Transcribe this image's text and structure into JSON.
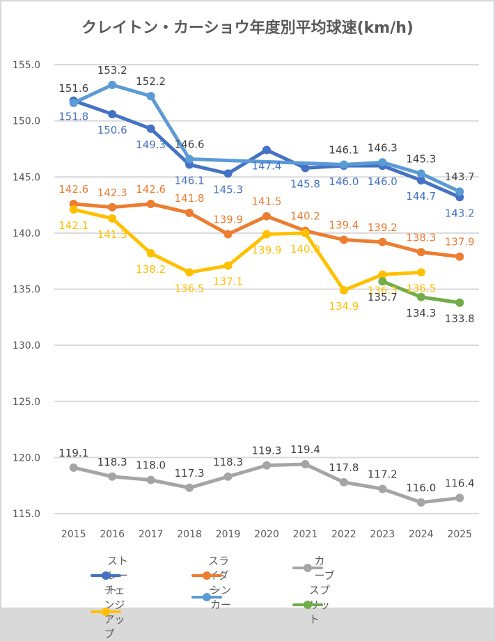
{
  "chart_data": {
    "type": "line",
    "title": "クレイトン・カーショウ年度別平均球速(km/h)",
    "xlabel": "",
    "ylabel": "",
    "ylim": [
      115.0,
      155.0
    ],
    "yticks": [
      "155.0",
      "150.0",
      "145.0",
      "140.0",
      "135.0",
      "130.0",
      "125.0",
      "120.0",
      "115.0"
    ],
    "grid": true,
    "legend_position": "bottom",
    "categories": [
      "2015",
      "2016",
      "2017",
      "2018",
      "2019",
      "2020",
      "2021",
      "2022",
      "2023",
      "2024",
      "2025"
    ],
    "series": [
      {
        "name": "ストレート",
        "color": "#4472c4",
        "label_color": "#4472c4",
        "label_pos": "below",
        "values": [
          151.8,
          150.6,
          149.3,
          146.1,
          145.3,
          147.4,
          145.8,
          146.0,
          146.0,
          144.7,
          143.2
        ]
      },
      {
        "name": "スライダー",
        "color": "#ed7d31",
        "label_color": "#ed7d31",
        "label_pos": "above",
        "values": [
          142.6,
          142.3,
          142.6,
          141.8,
          139.9,
          141.5,
          140.2,
          139.4,
          139.2,
          138.3,
          137.9
        ]
      },
      {
        "name": "カーブ",
        "color": "#a5a5a5",
        "label_color": "#404040",
        "label_pos": "above",
        "values": [
          119.1,
          118.3,
          118.0,
          117.3,
          118.3,
          119.3,
          119.4,
          117.8,
          117.2,
          116.0,
          116.4
        ]
      },
      {
        "name": "チェンジアップ",
        "color": "#ffc000",
        "label_color": "#ffc000",
        "label_pos": "below",
        "values": [
          142.1,
          141.3,
          138.2,
          136.5,
          137.1,
          139.9,
          140.0,
          134.9,
          136.3,
          136.5,
          null
        ]
      },
      {
        "name": "シンカー",
        "color": "#5b9bd5",
        "label_color": "#404040",
        "label_pos": "above",
        "values": [
          151.6,
          153.2,
          152.2,
          146.6,
          null,
          null,
          null,
          146.1,
          146.3,
          145.3,
          143.7
        ]
      },
      {
        "name": "スプリット",
        "color": "#70ad47",
        "label_color": "#404040",
        "label_pos": "below",
        "values": [
          null,
          null,
          null,
          null,
          null,
          null,
          null,
          null,
          135.7,
          134.3,
          133.8
        ]
      }
    ]
  }
}
